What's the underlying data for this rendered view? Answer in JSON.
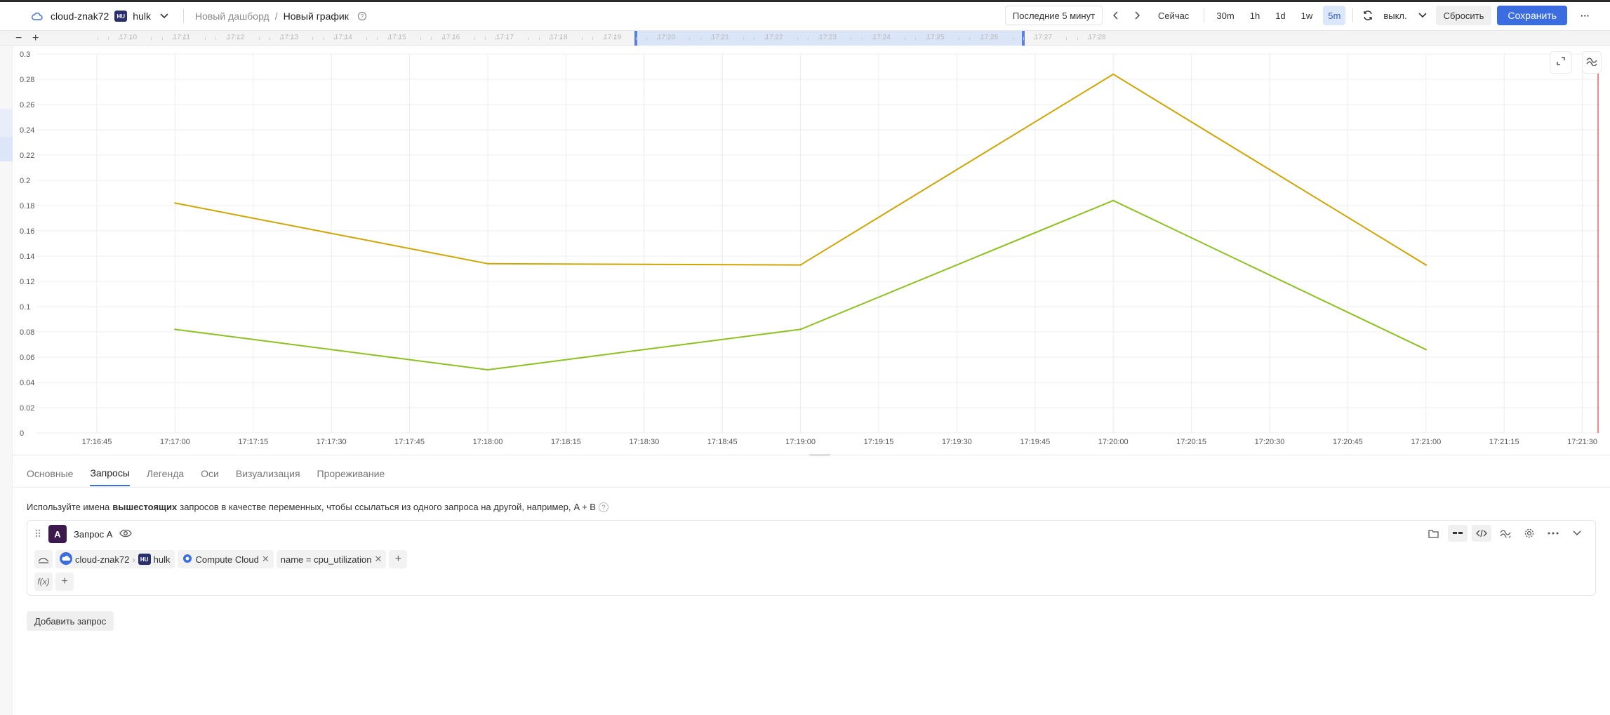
{
  "header": {
    "cloud_name": "cloud-znak72",
    "folder_badge": "HU",
    "folder_name": "hulk",
    "crumb_dashboard": "Новый дашборд",
    "crumb_sep": "/",
    "crumb_chart": "Новый график",
    "range_label": "Последние 5 минут",
    "now_label": "Сейчас",
    "presets": [
      "30m",
      "1h",
      "1d",
      "1w",
      "5m"
    ],
    "selected_preset": "5m",
    "autorefresh_label": "выкл.",
    "reset_label": "Сбросить",
    "save_label": "Сохранить",
    "more_label": "···"
  },
  "timeline": {
    "labels": [
      "17:10",
      "17:11",
      "17:12",
      "17:13",
      "17:14",
      "17:15",
      "17:16",
      "17:17",
      "17:18",
      "17:19",
      "17:20",
      "17:21",
      "17:22",
      "17:23",
      "17:24",
      "17:25",
      "17:26",
      "17:27",
      "17:28"
    ],
    "minus": "−",
    "plus": "+"
  },
  "chart_data": {
    "type": "line",
    "x": [
      "17:17:00",
      "17:18:00",
      "17:19:00",
      "17:20:00",
      "17:21:00"
    ],
    "x_ticks": [
      "17:16:45",
      "17:17:00",
      "17:17:15",
      "17:17:30",
      "17:17:45",
      "17:18:00",
      "17:18:15",
      "17:18:30",
      "17:18:45",
      "17:19:00",
      "17:19:15",
      "17:19:30",
      "17:19:45",
      "17:20:00",
      "17:20:15",
      "17:20:30",
      "17:20:45",
      "17:21:00",
      "17:21:15",
      "17:21:30"
    ],
    "y_ticks": [
      "0",
      "0.02",
      "0.04",
      "0.06",
      "0.08",
      "0.1",
      "0.12",
      "0.14",
      "0.16",
      "0.18",
      "0.2",
      "0.22",
      "0.24",
      "0.26",
      "0.28",
      "0.3"
    ],
    "ylim": [
      0,
      0.3
    ],
    "grid": true,
    "series": [
      {
        "color": "#d2a400",
        "values": [
          0.182,
          0.134,
          0.133,
          0.284,
          0.133
        ]
      },
      {
        "color": "#8cc21b",
        "values": [
          0.082,
          0.05,
          0.082,
          0.184,
          0.066
        ]
      }
    ]
  },
  "tabs": [
    "Основные",
    "Запросы",
    "Легенда",
    "Оси",
    "Визуализация",
    "Прореживание"
  ],
  "active_tab": "Запросы",
  "hint": {
    "before": "Используйте имена",
    "bold": "вышестоящих",
    "after": "запросов в качестве переменных, чтобы ссылаться из одного запроса на другой, например,",
    "example": "A + B",
    "help": "?"
  },
  "query": {
    "letter": "A",
    "title": "Запрос A",
    "cloud": "cloud-znak72",
    "folder_badge": "HU",
    "folder": "hulk",
    "service": "Compute Cloud",
    "filter": "name = cpu_utilization",
    "fx": "f(x)",
    "plus": "+"
  },
  "add_query_label": "Добавить запрос",
  "colors": {
    "accent": "#3b6de0",
    "query_letter": "#3c1a4e",
    "marker": "#f08a8a"
  }
}
